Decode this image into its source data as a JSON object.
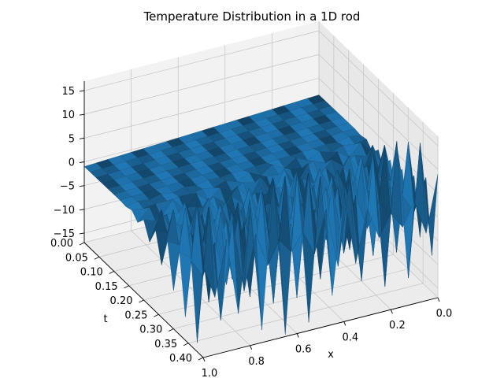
{
  "chart_data": {
    "type": "surface",
    "title": "Temperature Distribution in a 1D rod",
    "xlabel": "x",
    "ylabel": "t",
    "zlabel": "",
    "x_ticks": [
      "0.0",
      "0.2",
      "0.4",
      "0.6",
      "0.8",
      "1.0"
    ],
    "y_ticks": [
      "0.00",
      "0.05",
      "0.10",
      "0.15",
      "0.20",
      "0.25",
      "0.30",
      "0.35",
      "0.40"
    ],
    "z_ticks": [
      "−15",
      "−10",
      "−5",
      "0",
      "5",
      "10",
      "15"
    ],
    "xlim": [
      0,
      1
    ],
    "ylim": [
      0,
      0.4
    ],
    "zlim": [
      -17,
      17
    ],
    "grid": true,
    "surface_color": "#1f77b4",
    "surface_description_values": {
      "x": [
        0.0,
        0.05,
        0.1,
        0.15,
        0.2,
        0.25,
        0.3,
        0.35,
        0.4,
        0.45,
        0.5,
        0.55,
        0.6,
        0.65,
        0.7,
        0.75,
        0.8,
        0.85,
        0.9,
        0.95,
        1.0
      ],
      "t": [
        0.0,
        0.02,
        0.04,
        0.06,
        0.08,
        0.1,
        0.12,
        0.14,
        0.16,
        0.18,
        0.2,
        0.22,
        0.24,
        0.26,
        0.28,
        0.3,
        0.32,
        0.34,
        0.36,
        0.38,
        0.4
      ],
      "base_temperature_range": [
        -2,
        2
      ],
      "oscillation_max_amplitude": 17
    }
  }
}
